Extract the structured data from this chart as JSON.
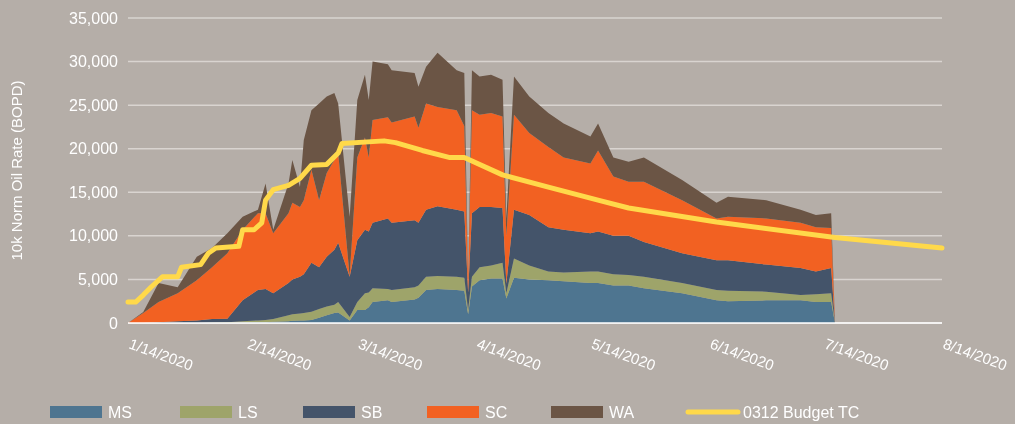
{
  "chart_data": {
    "type": "area",
    "stacked": true,
    "ylabel": "10k Norm Oil Rate (BOPD)",
    "x": [
      "2020-01-14",
      "2020-01-18",
      "2020-01-22",
      "2020-01-27",
      "2020-02-01",
      "2020-02-05",
      "2020-02-09",
      "2020-02-13",
      "2020-02-17",
      "2020-02-19",
      "2020-02-21",
      "2020-02-25",
      "2020-02-26",
      "2020-02-28",
      "2020-02-29",
      "2020-03-02",
      "2020-03-04",
      "2020-03-06",
      "2020-03-08",
      "2020-03-09",
      "2020-03-12",
      "2020-03-14",
      "2020-03-16",
      "2020-03-17",
      "2020-03-18",
      "2020-03-22",
      "2020-03-23",
      "2020-03-29",
      "2020-03-30",
      "2020-04-01",
      "2020-04-04",
      "2020-04-09",
      "2020-04-11",
      "2020-04-12",
      "2020-04-13",
      "2020-04-15",
      "2020-04-18",
      "2020-04-21",
      "2020-04-22",
      "2020-04-24",
      "2020-04-28",
      "2020-05-03",
      "2020-05-07",
      "2020-05-14",
      "2020-05-16",
      "2020-05-20",
      "2020-05-24",
      "2020-05-28",
      "2020-06-07",
      "2020-06-16",
      "2020-06-19",
      "2020-06-29",
      "2020-07-08",
      "2020-07-12",
      "2020-07-16",
      "2020-07-17"
    ],
    "series": [
      {
        "name": "MS",
        "color": "#4e7590",
        "values": [
          0,
          0,
          0,
          0,
          0,
          0,
          0,
          50,
          100,
          100,
          150,
          200,
          250,
          300,
          300,
          350,
          600,
          900,
          1150,
          1200,
          300,
          1500,
          1500,
          1800,
          2400,
          2600,
          2400,
          2700,
          2900,
          3800,
          3900,
          3800,
          3700,
          1000,
          4200,
          4900,
          5100,
          5100,
          2800,
          5200,
          5000,
          4900,
          4800,
          4600,
          4600,
          4300,
          4300,
          4000,
          3400,
          2600,
          2500,
          2600,
          2600,
          2400,
          2400,
          0
        ]
      },
      {
        "name": "LS",
        "color": "#9ea46a",
        "values": [
          0,
          0,
          0,
          0,
          0,
          50,
          100,
          150,
          200,
          250,
          300,
          700,
          750,
          800,
          850,
          950,
          1000,
          1000,
          950,
          1200,
          400,
          900,
          1900,
          1700,
          1600,
          1300,
          1400,
          1400,
          1400,
          1500,
          1500,
          1500,
          1500,
          500,
          1100,
          1500,
          1500,
          1800,
          600,
          2200,
          1600,
          1000,
          1000,
          1300,
          1300,
          1300,
          1200,
          1300,
          1200,
          1200,
          1200,
          1000,
          600,
          900,
          1000,
          0
        ]
      },
      {
        "name": "SB",
        "color": "#44546a",
        "values": [
          0,
          0,
          100,
          200,
          300,
          400,
          400,
          2400,
          3500,
          3550,
          2950,
          3700,
          4000,
          4200,
          4450,
          5600,
          4800,
          5700,
          6300,
          6800,
          4600,
          7100,
          7300,
          7000,
          7500,
          8100,
          7700,
          7700,
          7200,
          7700,
          8000,
          7700,
          7600,
          2000,
          7300,
          6900,
          6700,
          6300,
          1100,
          5600,
          5800,
          5100,
          4900,
          4400,
          4600,
          4400,
          4500,
          4000,
          3400,
          3400,
          3500,
          3100,
          3100,
          2600,
          2900,
          0
        ]
      },
      {
        "name": "SC",
        "color": "#f26122",
        "values": [
          0,
          1150,
          2300,
          3200,
          4600,
          5950,
          7500,
          8100,
          8800,
          8700,
          6900,
          8000,
          8800,
          8000,
          8500,
          10700,
          7700,
          9600,
          10300,
          10300,
          100,
          9500,
          10600,
          8500,
          11800,
          11600,
          11500,
          11900,
          10900,
          12200,
          11400,
          11400,
          9800,
          1500,
          11800,
          10600,
          10800,
          10500,
          5500,
          10900,
          9400,
          9200,
          8300,
          8000,
          9300,
          6800,
          6200,
          6900,
          6100,
          4800,
          5000,
          5300,
          5200,
          5100,
          4600,
          0
        ]
      },
      {
        "name": "WA",
        "color": "#6b5545",
        "values": [
          0,
          110,
          2200,
          700,
          2700,
          2200,
          2300,
          1500,
          400,
          3400,
          400,
          3400,
          4900,
          2300,
          6900,
          6800,
          11100,
          8800,
          7700,
          5700,
          6800,
          6600,
          7200,
          6600,
          6700,
          6100,
          6000,
          5000,
          4700,
          4200,
          6200,
          4600,
          6100,
          200,
          4600,
          4400,
          4400,
          4200,
          2000,
          4400,
          4200,
          3900,
          3900,
          3100,
          3100,
          2200,
          2300,
          2800,
          2300,
          1800,
          2300,
          2100,
          1500,
          1400,
          1700,
          0
        ]
      },
      {
        "name": "0312 Budget TC",
        "type": "line",
        "color": "#ffd94a",
        "x": [
          "2020-01-14",
          "2020-01-16",
          "2020-01-18",
          "2020-01-20",
          "2020-01-23",
          "2020-01-27",
          "2020-01-28",
          "2020-02-02",
          "2020-02-04",
          "2020-02-06",
          "2020-02-12",
          "2020-02-13",
          "2020-02-16",
          "2020-02-18",
          "2020-02-19",
          "2020-02-21",
          "2020-02-25",
          "2020-02-28",
          "2020-03-02",
          "2020-03-06",
          "2020-03-09",
          "2020-03-10",
          "2020-03-21",
          "2020-03-24",
          "2020-03-31",
          "2020-04-07",
          "2020-04-11",
          "2020-04-21",
          "2020-05-03",
          "2020-05-16",
          "2020-05-24",
          "2020-06-16",
          "2020-07-17",
          "2020-08-14"
        ],
        "values": [
          2400,
          2400,
          3200,
          4100,
          5300,
          5300,
          6400,
          6700,
          8000,
          8600,
          8800,
          10700,
          10700,
          11500,
          14100,
          15300,
          15800,
          16600,
          18100,
          18200,
          19500,
          20600,
          20900,
          20700,
          19800,
          19000,
          19000,
          17000,
          15600,
          14100,
          13200,
          11600,
          9800,
          8600
        ]
      }
    ],
    "xlim": [
      "2020-01-14",
      "2020-08-14"
    ],
    "xticks": [
      {
        "value": "2020-01-14",
        "label": "1/14/2020"
      },
      {
        "value": "2020-02-14",
        "label": "2/14/2020"
      },
      {
        "value": "2020-03-14",
        "label": "3/14/2020"
      },
      {
        "value": "2020-04-14",
        "label": "4/14/2020"
      },
      {
        "value": "2020-05-14",
        "label": "5/14/2020"
      },
      {
        "value": "2020-06-14",
        "label": "6/14/2020"
      },
      {
        "value": "2020-07-14",
        "label": "7/14/2020"
      },
      {
        "value": "2020-08-14",
        "label": "8/14/2020"
      }
    ],
    "ylim": [
      0,
      35000
    ],
    "yticks": [
      0,
      {
        "value": 5000,
        "label": "5,000"
      },
      {
        "value": 10000,
        "label": "10,000"
      },
      {
        "value": 15000,
        "label": "15,000"
      },
      {
        "value": 20000,
        "label": "20,000"
      },
      {
        "value": 25000,
        "label": "25,000"
      },
      {
        "value": 30000,
        "label": "30,000"
      },
      {
        "value": 35000,
        "label": "35,000"
      }
    ],
    "grid": "y",
    "legend": "bottom",
    "marker": "none",
    "line_style": "solid"
  }
}
